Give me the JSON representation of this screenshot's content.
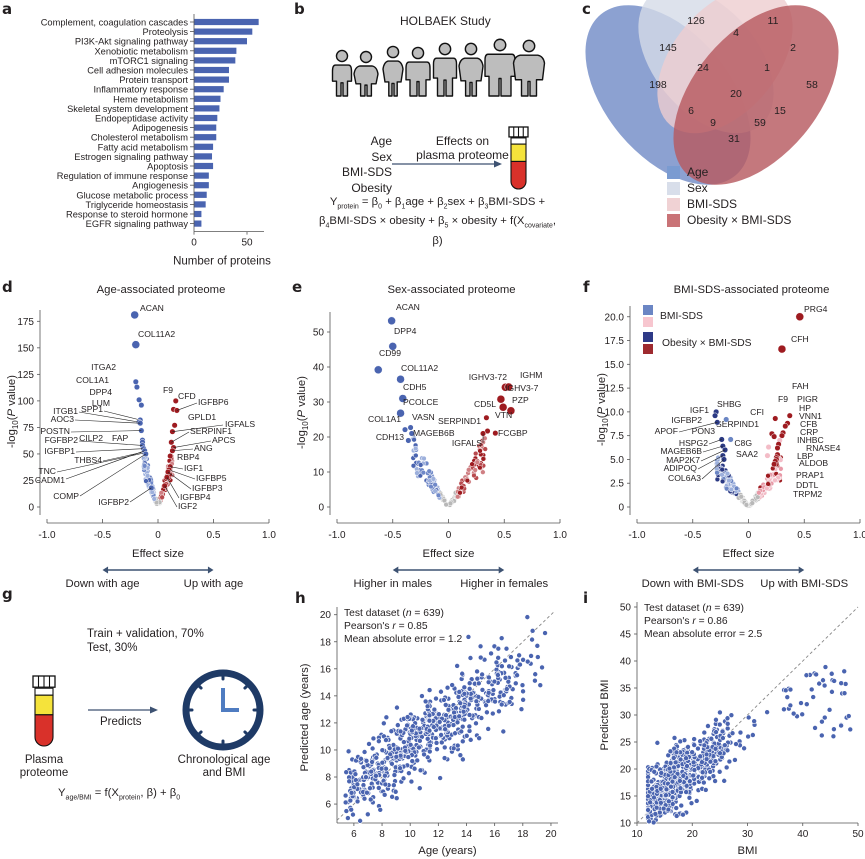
{
  "panel_labels": [
    "a",
    "b",
    "c",
    "d",
    "e",
    "f",
    "g",
    "h",
    "i"
  ],
  "chart_data": [
    {
      "id": "a",
      "type": "bar",
      "orientation": "horizontal",
      "categories": [
        "Complement, coagulation cascades",
        "Proteolysis",
        "PI3K-Akt signaling pathway",
        "Xenobiotic metabolism",
        "mTORC1 signaling",
        "Cell adhesion molecules",
        "Protein transport",
        "Inflammatory response",
        "Heme metabolism",
        "Skeletal system development",
        "Endopeptidase activity",
        "Adipogenesis",
        "Cholesterol metabolism",
        "Fatty acid metabolism",
        "Estrogen signaling pathway",
        "Apoptosis",
        "Regulation of immune response",
        "Angiogenesis",
        "Glucose metabolic process",
        "Triglyceride homeostasis",
        "Response to steroid hormone",
        "EGFR signaling pathway"
      ],
      "values": [
        61,
        55,
        50,
        40,
        39,
        33,
        33,
        28,
        25,
        24,
        22,
        21,
        21,
        18,
        17,
        18,
        14,
        14,
        12,
        11,
        7,
        7
      ],
      "xlabel": "Number of proteins",
      "xticks": [
        "0",
        "50"
      ],
      "xlim": [
        0,
        65
      ],
      "color": "#4a64b0"
    },
    {
      "id": "c",
      "type": "venn",
      "sets": [
        "Age",
        "Sex",
        "BMI-SDS",
        "Obesity × BMI-SDS"
      ],
      "set_colors": [
        "#6b86c4",
        "#d4dbe7",
        "#eecdd0",
        "#c4686c"
      ],
      "region_counts": [
        126,
        11,
        145,
        4,
        2,
        24,
        1,
        198,
        20,
        58,
        6,
        15,
        9,
        59,
        31
      ]
    },
    {
      "id": "d",
      "type": "scatter",
      "subtype": "volcano",
      "title": "Age-associated proteome",
      "xlabel": "Effect size",
      "ylabel": "-log10(P value)",
      "xlim": [
        -1.0,
        1.0
      ],
      "ylim": [
        0,
        180
      ],
      "xticks": [
        "-1.0",
        "-0.5",
        "0",
        "0.5",
        "1.0"
      ],
      "yticks": [
        "0",
        "25",
        "50",
        "75",
        "100",
        "125",
        "150",
        "175"
      ],
      "yticks_values": [
        0,
        25,
        50,
        75,
        100,
        125,
        150,
        175
      ],
      "direction_left": "Down with age",
      "direction_right": "Up with age",
      "labeled_points": [
        {
          "label": "ACAN",
          "x": -0.21,
          "y": 181,
          "side": "neg"
        },
        {
          "label": "COL11A2",
          "x": -0.2,
          "y": 153,
          "side": "neg"
        },
        {
          "label": "ITGA2",
          "x": -0.2,
          "y": 118,
          "side": "neg"
        },
        {
          "label": "COL1A1",
          "x": -0.19,
          "y": 113,
          "side": "neg"
        },
        {
          "label": "DPP4",
          "x": -0.17,
          "y": 101,
          "side": "neg"
        },
        {
          "label": "LUM",
          "x": -0.15,
          "y": 96,
          "side": "neg"
        },
        {
          "label": "SPP1",
          "x": -0.16,
          "y": 82,
          "side": "neg"
        },
        {
          "label": "ITGB1",
          "x": -0.17,
          "y": 80,
          "side": "neg"
        },
        {
          "label": "AOC3",
          "x": -0.16,
          "y": 79,
          "side": "neg"
        },
        {
          "label": "POSTN",
          "x": -0.15,
          "y": 72,
          "side": "neg"
        },
        {
          "label": "FAP",
          "x": -0.14,
          "y": 63,
          "side": "neg"
        },
        {
          "label": "CILP2",
          "x": -0.14,
          "y": 61,
          "side": "neg"
        },
        {
          "label": "FGFBP2",
          "x": -0.14,
          "y": 58,
          "side": "neg"
        },
        {
          "label": "IGFBP1",
          "x": -0.13,
          "y": 55,
          "side": "neg"
        },
        {
          "label": "THBS4",
          "x": -0.12,
          "y": 52,
          "side": "neg"
        },
        {
          "label": "TNC",
          "x": -0.12,
          "y": 51,
          "side": "neg"
        },
        {
          "label": "CADM1",
          "x": -0.12,
          "y": 53,
          "side": "neg"
        },
        {
          "label": "COMP",
          "x": -0.11,
          "y": 50,
          "side": "neg"
        },
        {
          "label": "IGFBP2",
          "x": -0.06,
          "y": 18,
          "side": "neg"
        },
        {
          "label": "F9",
          "x": 0.14,
          "y": 92,
          "side": "pos"
        },
        {
          "label": "CFD",
          "x": 0.16,
          "y": 100,
          "side": "pos"
        },
        {
          "label": "IGFBP6",
          "x": 0.17,
          "y": 91,
          "side": "pos"
        },
        {
          "label": "GPLD1",
          "x": 0.15,
          "y": 77,
          "side": "pos"
        },
        {
          "label": "IGFALS",
          "x": 0.13,
          "y": 71,
          "side": "pos"
        },
        {
          "label": "SERPINF1",
          "x": 0.12,
          "y": 61,
          "side": "pos"
        },
        {
          "label": "APCS",
          "x": 0.14,
          "y": 56,
          "side": "pos"
        },
        {
          "label": "ANG",
          "x": 0.13,
          "y": 53,
          "side": "pos"
        },
        {
          "label": "RBP4",
          "x": 0.11,
          "y": 48,
          "side": "pos"
        },
        {
          "label": "IGF1",
          "x": 0.11,
          "y": 38,
          "side": "pos"
        },
        {
          "label": "IGFBP5",
          "x": 0.1,
          "y": 35,
          "side": "pos"
        },
        {
          "label": "IGFBP3",
          "x": 0.09,
          "y": 33,
          "side": "pos"
        },
        {
          "label": "IGFBP4",
          "x": 0.08,
          "y": 28,
          "side": "pos"
        },
        {
          "label": "IGF2",
          "x": 0.06,
          "y": 20,
          "side": "pos"
        }
      ]
    },
    {
      "id": "e",
      "type": "scatter",
      "subtype": "volcano",
      "title": "Sex-associated proteome",
      "xlabel": "Effect size",
      "ylabel": "-log10(P value)",
      "xlim": [
        -1.0,
        1.0
      ],
      "ylim": [
        0,
        54
      ],
      "xticks": [
        "-1.0",
        "-0.5",
        "0",
        "0.5",
        "1.0"
      ],
      "yticks": [
        "0",
        "10",
        "20",
        "30",
        "40",
        "50"
      ],
      "yticks_values": [
        0,
        10,
        20,
        30,
        40,
        50
      ],
      "direction_left": "Higher in males",
      "direction_right": "Higher in females",
      "labeled_points": [
        {
          "label": "ACAN",
          "x": -0.51,
          "y": 53.2,
          "side": "neg"
        },
        {
          "label": "DPP4",
          "x": -0.5,
          "y": 45.9,
          "side": "neg"
        },
        {
          "label": "CD99",
          "x": -0.63,
          "y": 39.2,
          "side": "neg"
        },
        {
          "label": "COL11A2",
          "x": -0.43,
          "y": 36.5,
          "side": "neg"
        },
        {
          "label": "CDH5",
          "x": -0.41,
          "y": 31.0,
          "side": "neg"
        },
        {
          "label": "PCOLCE",
          "x": -0.43,
          "y": 26.8,
          "side": "neg"
        },
        {
          "label": "COL1A1",
          "x": -0.39,
          "y": 22.1,
          "side": "neg"
        },
        {
          "label": "VASN",
          "x": -0.34,
          "y": 22.7,
          "side": "neg"
        },
        {
          "label": "MAGEB6B",
          "x": -0.33,
          "y": 21.0,
          "side": "neg"
        },
        {
          "label": "CDH13",
          "x": -0.36,
          "y": 19.0,
          "side": "neg"
        },
        {
          "label": "IGHV3-72",
          "x": 0.51,
          "y": 34.2,
          "side": "pos"
        },
        {
          "label": "IGHM",
          "x": 0.54,
          "y": 34.3,
          "side": "pos"
        },
        {
          "label": "IGHV3-7",
          "x": 0.47,
          "y": 30.8,
          "side": "pos"
        },
        {
          "label": "CD5L",
          "x": 0.49,
          "y": 28.5,
          "side": "pos"
        },
        {
          "label": "PZP",
          "x": 0.56,
          "y": 27.5,
          "side": "pos"
        },
        {
          "label": "VTN",
          "x": 0.34,
          "y": 25.5,
          "side": "pos"
        },
        {
          "label": "SERPIND1",
          "x": 0.35,
          "y": 21.7,
          "side": "pos"
        },
        {
          "label": "IGFALS",
          "x": 0.31,
          "y": 21.0,
          "side": "pos"
        },
        {
          "label": "FCGBP",
          "x": 0.42,
          "y": 21.1,
          "side": "pos"
        }
      ]
    },
    {
      "id": "f",
      "type": "scatter",
      "subtype": "volcano",
      "title": "BMI-SDS-associated proteome",
      "xlabel": "Effect size",
      "ylabel": "-log10(P value)",
      "xlim": [
        -1.0,
        1.0
      ],
      "ylim": [
        0,
        20.5
      ],
      "xticks": [
        "-1.0",
        "-0.5",
        "0",
        "0.5",
        "1.0"
      ],
      "yticks": [
        "0",
        "2.5",
        "5.0",
        "7.5",
        "10.0",
        "12.5",
        "15.0",
        "17.5",
        "20.0"
      ],
      "yticks_values": [
        0,
        2.5,
        5,
        7.5,
        10,
        12.5,
        15,
        17.5,
        20
      ],
      "legend": [
        {
          "label": "BMI-SDS",
          "colors": [
            "#6b86c4",
            "#f7c6cf"
          ]
        },
        {
          "label": "Obesity × BMI-SDS",
          "colors": [
            "#2e3a87",
            "#9e2a2f"
          ]
        }
      ],
      "direction_left": "Down with BMI-SDS",
      "direction_right": "Up with BMI-SDS",
      "labeled_points": [
        {
          "label": "PRG4",
          "x": 0.46,
          "y": 20.0,
          "side": "pos"
        },
        {
          "label": "CFH",
          "x": 0.3,
          "y": 16.6,
          "side": "pos"
        },
        {
          "label": "FAH",
          "x": 0.37,
          "y": 9.6,
          "side": "pos"
        },
        {
          "label": "F9",
          "x": 0.24,
          "y": 9.3,
          "side": "pos"
        },
        {
          "label": "PIGR",
          "x": 0.35,
          "y": 8.8,
          "side": "pos"
        },
        {
          "label": "HP",
          "x": 0.33,
          "y": 8.5,
          "side": "pos"
        },
        {
          "label": "VNN1",
          "x": 0.31,
          "y": 7.8,
          "side": "pos"
        },
        {
          "label": "CFI",
          "x": 0.21,
          "y": 7.7,
          "side": "pos"
        },
        {
          "label": "CFB",
          "x": 0.3,
          "y": 7.5,
          "side": "pos"
        },
        {
          "label": "CRP",
          "x": 0.28,
          "y": 7.0,
          "side": "pos"
        },
        {
          "label": "SERPIND1",
          "x": 0.23,
          "y": 7.4,
          "side": "pos"
        },
        {
          "label": "INHBC",
          "x": 0.27,
          "y": 6.6,
          "side": "pos"
        },
        {
          "label": "RNASE4",
          "x": 0.26,
          "y": 6.2,
          "side": "pos"
        },
        {
          "label": "C8G",
          "x": 0.18,
          "y": 6.3,
          "side": "pos"
        },
        {
          "label": "LBP",
          "x": 0.26,
          "y": 5.5,
          "side": "pos"
        },
        {
          "label": "SAA2",
          "x": 0.17,
          "y": 5.4,
          "side": "pos"
        },
        {
          "label": "ALDOB",
          "x": 0.25,
          "y": 5.2,
          "side": "pos"
        },
        {
          "label": "PRAP1",
          "x": 0.25,
          "y": 5.0,
          "side": "pos"
        },
        {
          "label": "DDTL",
          "x": 0.24,
          "y": 4.8,
          "side": "pos"
        },
        {
          "label": "TRPM2",
          "x": 0.23,
          "y": 4.5,
          "side": "pos"
        },
        {
          "label": "SHBG",
          "x": -0.29,
          "y": 10.0,
          "side": "neg"
        },
        {
          "label": "IGF1",
          "x": -0.3,
          "y": 9.6,
          "side": "neg"
        },
        {
          "label": "IGFBP2",
          "x": -0.2,
          "y": 9.2,
          "side": "neg"
        },
        {
          "label": "APOF",
          "x": -0.28,
          "y": 8.9,
          "side": "neg"
        },
        {
          "label": "PON3",
          "x": -0.16,
          "y": 7.1,
          "side": "neg"
        },
        {
          "label": "HSPG2",
          "x": -0.24,
          "y": 7.1,
          "side": "neg"
        },
        {
          "label": "MAGEB6B",
          "x": -0.23,
          "y": 6.4,
          "side": "neg"
        },
        {
          "label": "MAP2K7",
          "x": -0.21,
          "y": 6.0,
          "side": "neg"
        },
        {
          "label": "ADIPOQ",
          "x": -0.23,
          "y": 5.4,
          "side": "neg"
        },
        {
          "label": "COL6A3",
          "x": -0.22,
          "y": 5.0,
          "side": "neg"
        }
      ]
    },
    {
      "id": "h",
      "type": "scatter",
      "xlabel": "Age (years)",
      "ylabel": "Predicted age (years)",
      "xlim": [
        4.8,
        20.5
      ],
      "ylim": [
        4.6,
        20.2
      ],
      "xticks": [
        "6",
        "8",
        "10",
        "12",
        "14",
        "16",
        "18",
        "20"
      ],
      "xticks_values": [
        6,
        8,
        10,
        12,
        14,
        16,
        18,
        20
      ],
      "yticks": [
        "6",
        "8",
        "10",
        "12",
        "14",
        "16",
        "18",
        "20"
      ],
      "yticks_values": [
        6,
        8,
        10,
        12,
        14,
        16,
        18,
        20
      ],
      "annotation": [
        "Test dataset (n = 639)",
        "Pearson's r = 0.85",
        "Mean absolute error = 1.2"
      ],
      "n": 639,
      "pearson_r": 0.85,
      "mae": 1.2,
      "identity_line": true
    },
    {
      "id": "i",
      "type": "scatter",
      "xlabel": "BMI",
      "ylabel": "Predicted BMI",
      "xlim": [
        10,
        50
      ],
      "ylim": [
        10,
        50
      ],
      "xticks": [
        "10",
        "20",
        "30",
        "40",
        "50"
      ],
      "xticks_values": [
        10,
        20,
        30,
        40,
        50
      ],
      "yticks": [
        "10",
        "15",
        "20",
        "25",
        "30",
        "35",
        "40",
        "45",
        "50"
      ],
      "yticks_values": [
        10,
        15,
        20,
        25,
        30,
        35,
        40,
        45,
        50
      ],
      "annotation": [
        "Test dataset (n = 639)",
        "Pearson's r = 0.86",
        "Mean absolute error = 2.5"
      ],
      "n": 639,
      "pearson_r": 0.86,
      "mae": 2.5,
      "identity_line": true
    }
  ],
  "panel_b": {
    "title": "HOLBAEK Study",
    "variables": [
      "Age",
      "Sex",
      "BMI-SDS",
      "Obesity"
    ],
    "arrow_label_line1": "Effects on",
    "arrow_label_line2": "plasma proteome",
    "equation_line1": "Y_protein = β0 + β1age + β2sex + β3BMI-SDS +",
    "equation_line2": "β4BMI-SDS × obesity + β5 × obesity + f(X_covariate, β)"
  },
  "panel_c_legend": [
    "Age",
    "Sex",
    "BMI-SDS",
    "Obesity × BMI-SDS"
  ],
  "panel_g": {
    "split_line1": "Train + validation, 70%",
    "split_line2": "Test, 30%",
    "arrow_label": "Predicts",
    "source_line1": "Plasma",
    "source_line2": "proteome",
    "target_line1": "Chronological age",
    "target_line2": "and BMI",
    "equation": "Y_age/BMI = f(X_protein, β) + β0"
  },
  "colors": {
    "blue": "#4a64b0",
    "red": "#9e1b20",
    "navy": "#2b3a84",
    "pink": "#f3bcc7",
    "grey": "#b5b5b5",
    "tube_yellow": "#f5e33b",
    "tube_red": "#d9312a",
    "clock": "#1e3a66",
    "clock_hands": "#4f7cc1"
  }
}
